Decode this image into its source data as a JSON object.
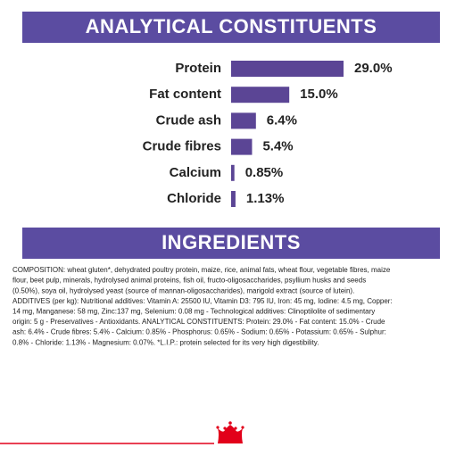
{
  "chart_data": {
    "type": "bar",
    "orientation": "horizontal",
    "title": "ANALYTICAL CONSTITUENTS",
    "categories": [
      "Protein",
      "Fat content",
      "Crude ash",
      "Crude fibres",
      "Calcium",
      "Chloride"
    ],
    "values": [
      29.0,
      15.0,
      6.4,
      5.4,
      0.85,
      1.13
    ],
    "value_labels": [
      "29.0%",
      "15.0%",
      "6.4%",
      "5.4%",
      "0.85%",
      "1.13%"
    ],
    "color": "#5b4595"
  },
  "ingredients": {
    "title": "INGREDIENTS",
    "lines": [
      "COMPOSITION: wheat gluten*, dehydrated poultry protein, maize, rice, animal fats, wheat flour, vegetable fibres, maize",
      "flour, beet pulp, minerals, hydrolysed animal proteins, fish oil, fructo-oligosaccharides, psyllium husks and seeds",
      "(0.50%), soya oil, hydrolysed yeast (source of mannan-oligosaccharides), marigold extract (source of lutein).",
      "ADDITIVES (per kg): Nutritional additives: Vitamin A: 25500 IU, Vitamin D3: 795 IU, Iron: 45 mg, Iodine: 4.5 mg, Copper:",
      "14 mg, Manganese: 58 mg, Zinc:137 mg, Selenium: 0.08 mg - Technological additives: Clinoptilolite of sedimentary",
      "origin: 5 g - Preservatives - Antioxidants. ANALYTICAL CONSTITUENTS: Protein: 29.0% - Fat content: 15.0% - Crude",
      "ash: 6.4% - Crude fibres: 5.4% - Calcium: 0.85% - Phosphorus: 0.65% - Sodium: 0.65% - Potassium: 0.65% - Sulphur:",
      "0.8% - Chloride: 1.13% - Magnesium: 0.07%. *L.I.P.: protein selected for its very high digestibility."
    ]
  }
}
